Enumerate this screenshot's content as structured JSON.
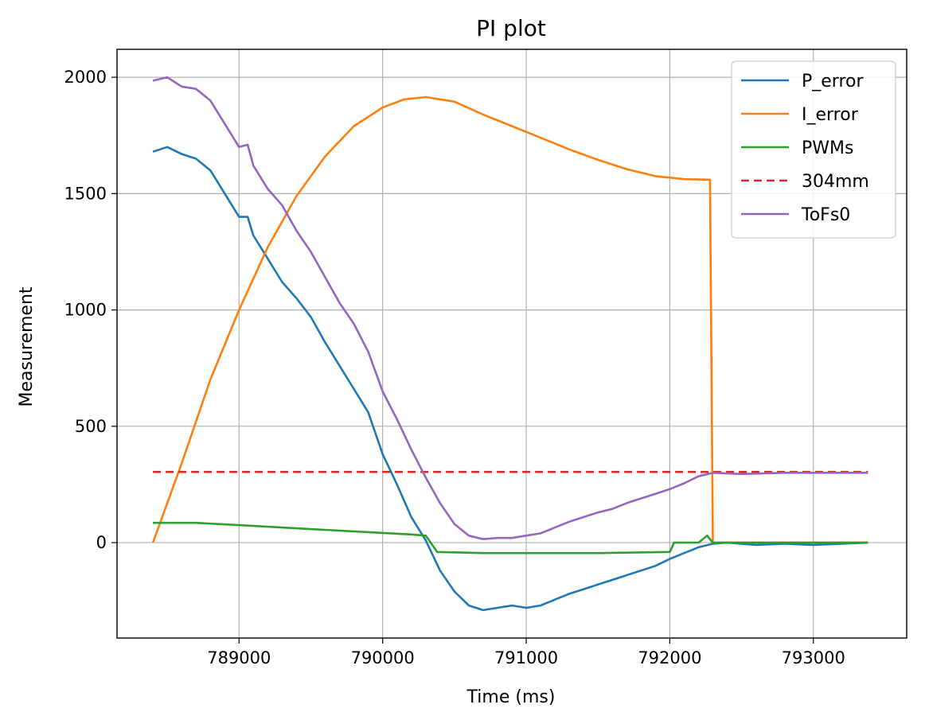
{
  "chart_data": {
    "type": "line",
    "title": "PI plot",
    "xlabel": "Time (ms)",
    "ylabel": "Measurement",
    "xlim": [
      788150,
      793650
    ],
    "ylim": [
      -410,
      2120
    ],
    "grid": true,
    "legend_position": "top-right",
    "xticks": [
      {
        "value": 789000,
        "label": "789000"
      },
      {
        "value": 790000,
        "label": "790000"
      },
      {
        "value": 791000,
        "label": "791000"
      },
      {
        "value": 792000,
        "label": "792000"
      },
      {
        "value": 793000,
        "label": "793000"
      }
    ],
    "yticks": [
      {
        "value": 0,
        "label": "0"
      },
      {
        "value": 500,
        "label": "500"
      },
      {
        "value": 1000,
        "label": "1000"
      },
      {
        "value": 1500,
        "label": "1500"
      },
      {
        "value": 2000,
        "label": "2000"
      }
    ],
    "series": [
      {
        "name": "P_error",
        "color": "#1f77b4",
        "dash": "solid",
        "points": [
          [
            788400,
            1680
          ],
          [
            788500,
            1700
          ],
          [
            788600,
            1670
          ],
          [
            788700,
            1650
          ],
          [
            788800,
            1600
          ],
          [
            788900,
            1500
          ],
          [
            789000,
            1400
          ],
          [
            789060,
            1400
          ],
          [
            789100,
            1320
          ],
          [
            789200,
            1220
          ],
          [
            789300,
            1120
          ],
          [
            789400,
            1050
          ],
          [
            789500,
            970
          ],
          [
            789600,
            860
          ],
          [
            789700,
            760
          ],
          [
            789800,
            660
          ],
          [
            789900,
            560
          ],
          [
            790000,
            380
          ],
          [
            790100,
            250
          ],
          [
            790200,
            110
          ],
          [
            790300,
            10
          ],
          [
            790400,
            -120
          ],
          [
            790500,
            -210
          ],
          [
            790600,
            -270
          ],
          [
            790700,
            -290
          ],
          [
            790800,
            -280
          ],
          [
            790900,
            -270
          ],
          [
            791000,
            -280
          ],
          [
            791100,
            -270
          ],
          [
            791200,
            -245
          ],
          [
            791300,
            -220
          ],
          [
            791400,
            -200
          ],
          [
            791500,
            -180
          ],
          [
            791600,
            -160
          ],
          [
            791700,
            -140
          ],
          [
            791800,
            -120
          ],
          [
            791900,
            -100
          ],
          [
            792000,
            -70
          ],
          [
            792100,
            -45
          ],
          [
            792200,
            -20
          ],
          [
            792300,
            -5
          ],
          [
            792400,
            0
          ],
          [
            792600,
            -10
          ],
          [
            792800,
            -5
          ],
          [
            793000,
            -10
          ],
          [
            793200,
            -5
          ],
          [
            793380,
            0
          ]
        ]
      },
      {
        "name": "I_error",
        "color": "#ff7f0e",
        "dash": "solid",
        "points": [
          [
            788400,
            0
          ],
          [
            788600,
            340
          ],
          [
            788800,
            700
          ],
          [
            789000,
            1000
          ],
          [
            789200,
            1270
          ],
          [
            789400,
            1490
          ],
          [
            789600,
            1660
          ],
          [
            789800,
            1790
          ],
          [
            790000,
            1870
          ],
          [
            790150,
            1905
          ],
          [
            790300,
            1915
          ],
          [
            790500,
            1895
          ],
          [
            790700,
            1840
          ],
          [
            790900,
            1790
          ],
          [
            791100,
            1740
          ],
          [
            791300,
            1690
          ],
          [
            791500,
            1645
          ],
          [
            791700,
            1605
          ],
          [
            791900,
            1575
          ],
          [
            792100,
            1562
          ],
          [
            792280,
            1560
          ],
          [
            792300,
            0
          ],
          [
            792500,
            0
          ],
          [
            793380,
            0
          ]
        ]
      },
      {
        "name": "PWMs",
        "color": "#2ca02c",
        "dash": "solid",
        "points": [
          [
            788400,
            85
          ],
          [
            788700,
            85
          ],
          [
            789000,
            75
          ],
          [
            789300,
            65
          ],
          [
            789600,
            55
          ],
          [
            789900,
            45
          ],
          [
            790200,
            35
          ],
          [
            790300,
            30
          ],
          [
            790380,
            -40
          ],
          [
            790700,
            -45
          ],
          [
            791000,
            -45
          ],
          [
            791500,
            -45
          ],
          [
            792000,
            -40
          ],
          [
            792030,
            0
          ],
          [
            792200,
            0
          ],
          [
            792260,
            30
          ],
          [
            792300,
            0
          ],
          [
            793380,
            0
          ]
        ]
      },
      {
        "name": "304mm",
        "color": "#d62728",
        "dash": "dashed",
        "points": [
          [
            788400,
            304
          ],
          [
            793380,
            304
          ]
        ]
      },
      {
        "name": "ToFs0",
        "color": "#9467bd",
        "dash": "solid",
        "points": [
          [
            788400,
            1985
          ],
          [
            788500,
            2000
          ],
          [
            788600,
            1960
          ],
          [
            788700,
            1950
          ],
          [
            788800,
            1900
          ],
          [
            788900,
            1800
          ],
          [
            789000,
            1700
          ],
          [
            789060,
            1710
          ],
          [
            789100,
            1620
          ],
          [
            789200,
            1520
          ],
          [
            789300,
            1450
          ],
          [
            789400,
            1340
          ],
          [
            789500,
            1250
          ],
          [
            789600,
            1140
          ],
          [
            789700,
            1030
          ],
          [
            789800,
            940
          ],
          [
            789900,
            820
          ],
          [
            790000,
            650
          ],
          [
            790100,
            530
          ],
          [
            790200,
            400
          ],
          [
            790300,
            280
          ],
          [
            790400,
            170
          ],
          [
            790500,
            80
          ],
          [
            790600,
            30
          ],
          [
            790700,
            15
          ],
          [
            790800,
            20
          ],
          [
            790900,
            20
          ],
          [
            791000,
            30
          ],
          [
            791100,
            40
          ],
          [
            791200,
            65
          ],
          [
            791300,
            90
          ],
          [
            791400,
            110
          ],
          [
            791500,
            130
          ],
          [
            791600,
            145
          ],
          [
            791700,
            170
          ],
          [
            791800,
            190
          ],
          [
            791900,
            210
          ],
          [
            792000,
            230
          ],
          [
            792100,
            255
          ],
          [
            792200,
            285
          ],
          [
            792300,
            300
          ],
          [
            792500,
            295
          ],
          [
            792800,
            300
          ],
          [
            793000,
            300
          ],
          [
            793200,
            300
          ],
          [
            793380,
            300
          ]
        ]
      }
    ]
  }
}
